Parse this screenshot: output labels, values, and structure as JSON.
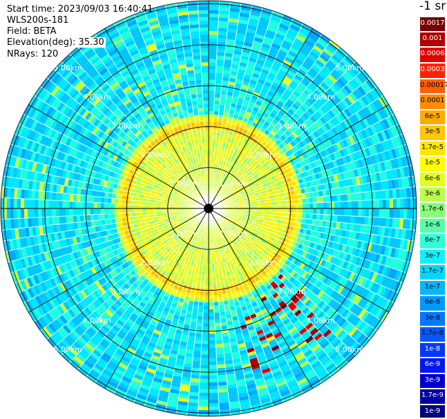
{
  "info": {
    "start_time": "Start time: 2023/09/03 16:40:41",
    "device": "WLS200s-181",
    "field": "Field: BETA",
    "elevation": "Elevation(deg): 35.30",
    "nrays": "NRays: 120"
  },
  "colorbar": {
    "unit": "-1 sr",
    "labels": [
      "0.0017",
      "0.001",
      "0.0006",
      "0.0003",
      "0.00017",
      "0.0001",
      "6e-5",
      "3e-5",
      "1.7e-5",
      "1e-5",
      "6e-6",
      "3e-6",
      "1.7e-6",
      "1e-6",
      "6e-7",
      "3e-7",
      "1.7e-7",
      "1e-7",
      "6e-8",
      "3e-8",
      "1.7e-8",
      "1e-8",
      "6e-9",
      "3e-9",
      "1.7e-9",
      "1e-9"
    ],
    "colors": [
      "#ffffff",
      "#ffffff",
      "#ffffff",
      "#ffffff",
      "#ffffff",
      "#ffffff",
      "#ffffff",
      "#ffffff",
      "#ffffff",
      "#ffffff",
      "#ffffff",
      "#ffffff",
      "#ffffff",
      "#ffffff",
      "#ffffff",
      "#ffffff",
      "#ffffff",
      "#ffffff",
      "#ffffff",
      "#ffffff",
      "#ffffff",
      "#ffffff",
      "#ffffff",
      "#ffffff",
      "#ffffff",
      "#ffffff"
    ]
  },
  "chart_data": {
    "type": "polar-ppi",
    "field": "BETA",
    "unit": "sr-1",
    "rings_km": [
      1,
      2,
      3,
      4,
      5
    ],
    "ring_labels": [
      "1.00km",
      "2.00km",
      "3.00km",
      "4.00km",
      "5.00km"
    ],
    "max_range_km": 5.1,
    "nrays": 120,
    "spokes_deg": [
      0,
      30,
      60,
      90,
      120,
      150,
      180,
      210,
      240,
      270,
      300,
      330
    ],
    "aerosol_ring_km": 2.0,
    "color_scale": [
      "#7a0000",
      "#b00000",
      "#e00000",
      "#ff3000",
      "#ff7000",
      "#ff9a00",
      "#ffc000",
      "#ffe000",
      "#fff000",
      "#e8ff20",
      "#c0ff40",
      "#90ff70",
      "#50ffb0",
      "#20ffe0",
      "#00e8ff",
      "#00c8ff",
      "#00a8ff",
      "#0090ff",
      "#0070ff",
      "#0050ff",
      "#0030ff",
      "#0010f0",
      "#0000d0",
      "#0000a0",
      "#000080"
    ]
  }
}
